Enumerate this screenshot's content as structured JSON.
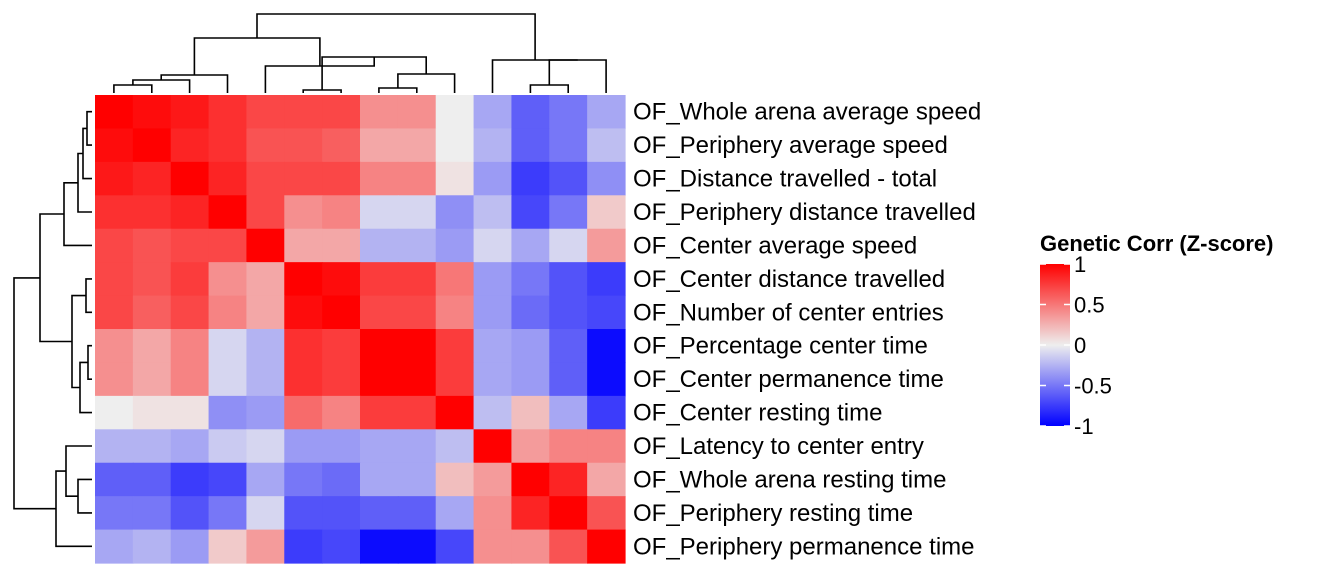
{
  "chart_data": {
    "type": "heatmap",
    "title": "",
    "row_labels": [
      "OF_Whole arena average speed",
      "OF_Periphery average speed",
      "OF_Distance travelled - total",
      "OF_Periphery distance travelled",
      "OF_Center average speed",
      "OF_Center distance travelled",
      "OF_Number of center entries",
      "OF_Percentage center time",
      "OF_Center permanence time",
      "OF_Center resting time",
      "OF_Latency to center entry",
      "OF_Whole arena resting time",
      "OF_Periphery resting time",
      "OF_Periphery permanence time"
    ],
    "column_order_note": "columns follow the top dendrogram order",
    "values": [
      [
        1.0,
        0.95,
        0.9,
        0.8,
        0.7,
        0.7,
        0.7,
        0.4,
        0.4,
        0.0,
        -0.3,
        -0.6,
        -0.5,
        -0.3
      ],
      [
        0.95,
        1.0,
        0.85,
        0.8,
        0.65,
        0.65,
        0.6,
        0.3,
        0.3,
        0.0,
        -0.25,
        -0.6,
        -0.5,
        -0.2
      ],
      [
        0.9,
        0.85,
        1.0,
        0.85,
        0.7,
        0.7,
        0.7,
        0.45,
        0.45,
        0.05,
        -0.35,
        -0.75,
        -0.65,
        -0.4
      ],
      [
        0.8,
        0.8,
        0.85,
        1.0,
        0.7,
        0.4,
        0.45,
        -0.1,
        -0.1,
        -0.4,
        -0.2,
        -0.7,
        -0.5,
        0.15
      ],
      [
        0.7,
        0.65,
        0.7,
        0.7,
        1.0,
        0.3,
        0.3,
        -0.25,
        -0.25,
        -0.35,
        -0.1,
        -0.3,
        -0.1,
        0.35
      ],
      [
        0.7,
        0.65,
        0.75,
        0.4,
        0.3,
        1.0,
        0.95,
        0.75,
        0.75,
        0.5,
        -0.35,
        -0.5,
        -0.65,
        -0.75
      ],
      [
        0.7,
        0.6,
        0.7,
        0.45,
        0.3,
        0.95,
        1.0,
        0.7,
        0.7,
        0.45,
        -0.35,
        -0.55,
        -0.65,
        -0.7
      ],
      [
        0.4,
        0.3,
        0.45,
        -0.1,
        -0.25,
        0.8,
        0.75,
        1.0,
        1.0,
        0.75,
        -0.3,
        -0.35,
        -0.6,
        -0.95
      ],
      [
        0.4,
        0.3,
        0.45,
        -0.1,
        -0.25,
        0.8,
        0.75,
        1.0,
        1.0,
        0.75,
        -0.3,
        -0.35,
        -0.6,
        -0.95
      ],
      [
        0.0,
        0.05,
        0.05,
        -0.4,
        -0.35,
        0.55,
        0.45,
        0.75,
        0.75,
        1.0,
        -0.2,
        0.2,
        -0.3,
        -0.75
      ],
      [
        -0.25,
        -0.25,
        -0.3,
        -0.15,
        -0.1,
        -0.35,
        -0.35,
        -0.3,
        -0.3,
        -0.2,
        1.0,
        0.35,
        0.45,
        0.45
      ],
      [
        -0.6,
        -0.6,
        -0.75,
        -0.7,
        -0.3,
        -0.5,
        -0.55,
        -0.3,
        -0.3,
        0.2,
        0.35,
        1.0,
        0.85,
        0.3
      ],
      [
        -0.5,
        -0.5,
        -0.65,
        -0.5,
        -0.1,
        -0.65,
        -0.65,
        -0.6,
        -0.6,
        -0.3,
        0.4,
        0.85,
        1.0,
        0.65
      ],
      [
        -0.3,
        -0.25,
        -0.35,
        0.15,
        0.35,
        -0.75,
        -0.7,
        -0.95,
        -0.95,
        -0.7,
        0.4,
        0.4,
        0.65,
        1.0
      ]
    ],
    "colorscale": {
      "low": "#0000ff",
      "mid": "#eeeeee",
      "high": "#ff0000",
      "domain": [
        -1,
        0,
        1
      ]
    },
    "legend": {
      "title": "Genetic Corr (Z-score)",
      "ticks": [
        1,
        0.5,
        0,
        -0.5,
        -1
      ],
      "tick_labels": [
        "1",
        "0.5",
        "0",
        "-0.5",
        "-1"
      ],
      "placement": "right"
    },
    "row_dendrogram": true,
    "column_dendrogram": true
  }
}
